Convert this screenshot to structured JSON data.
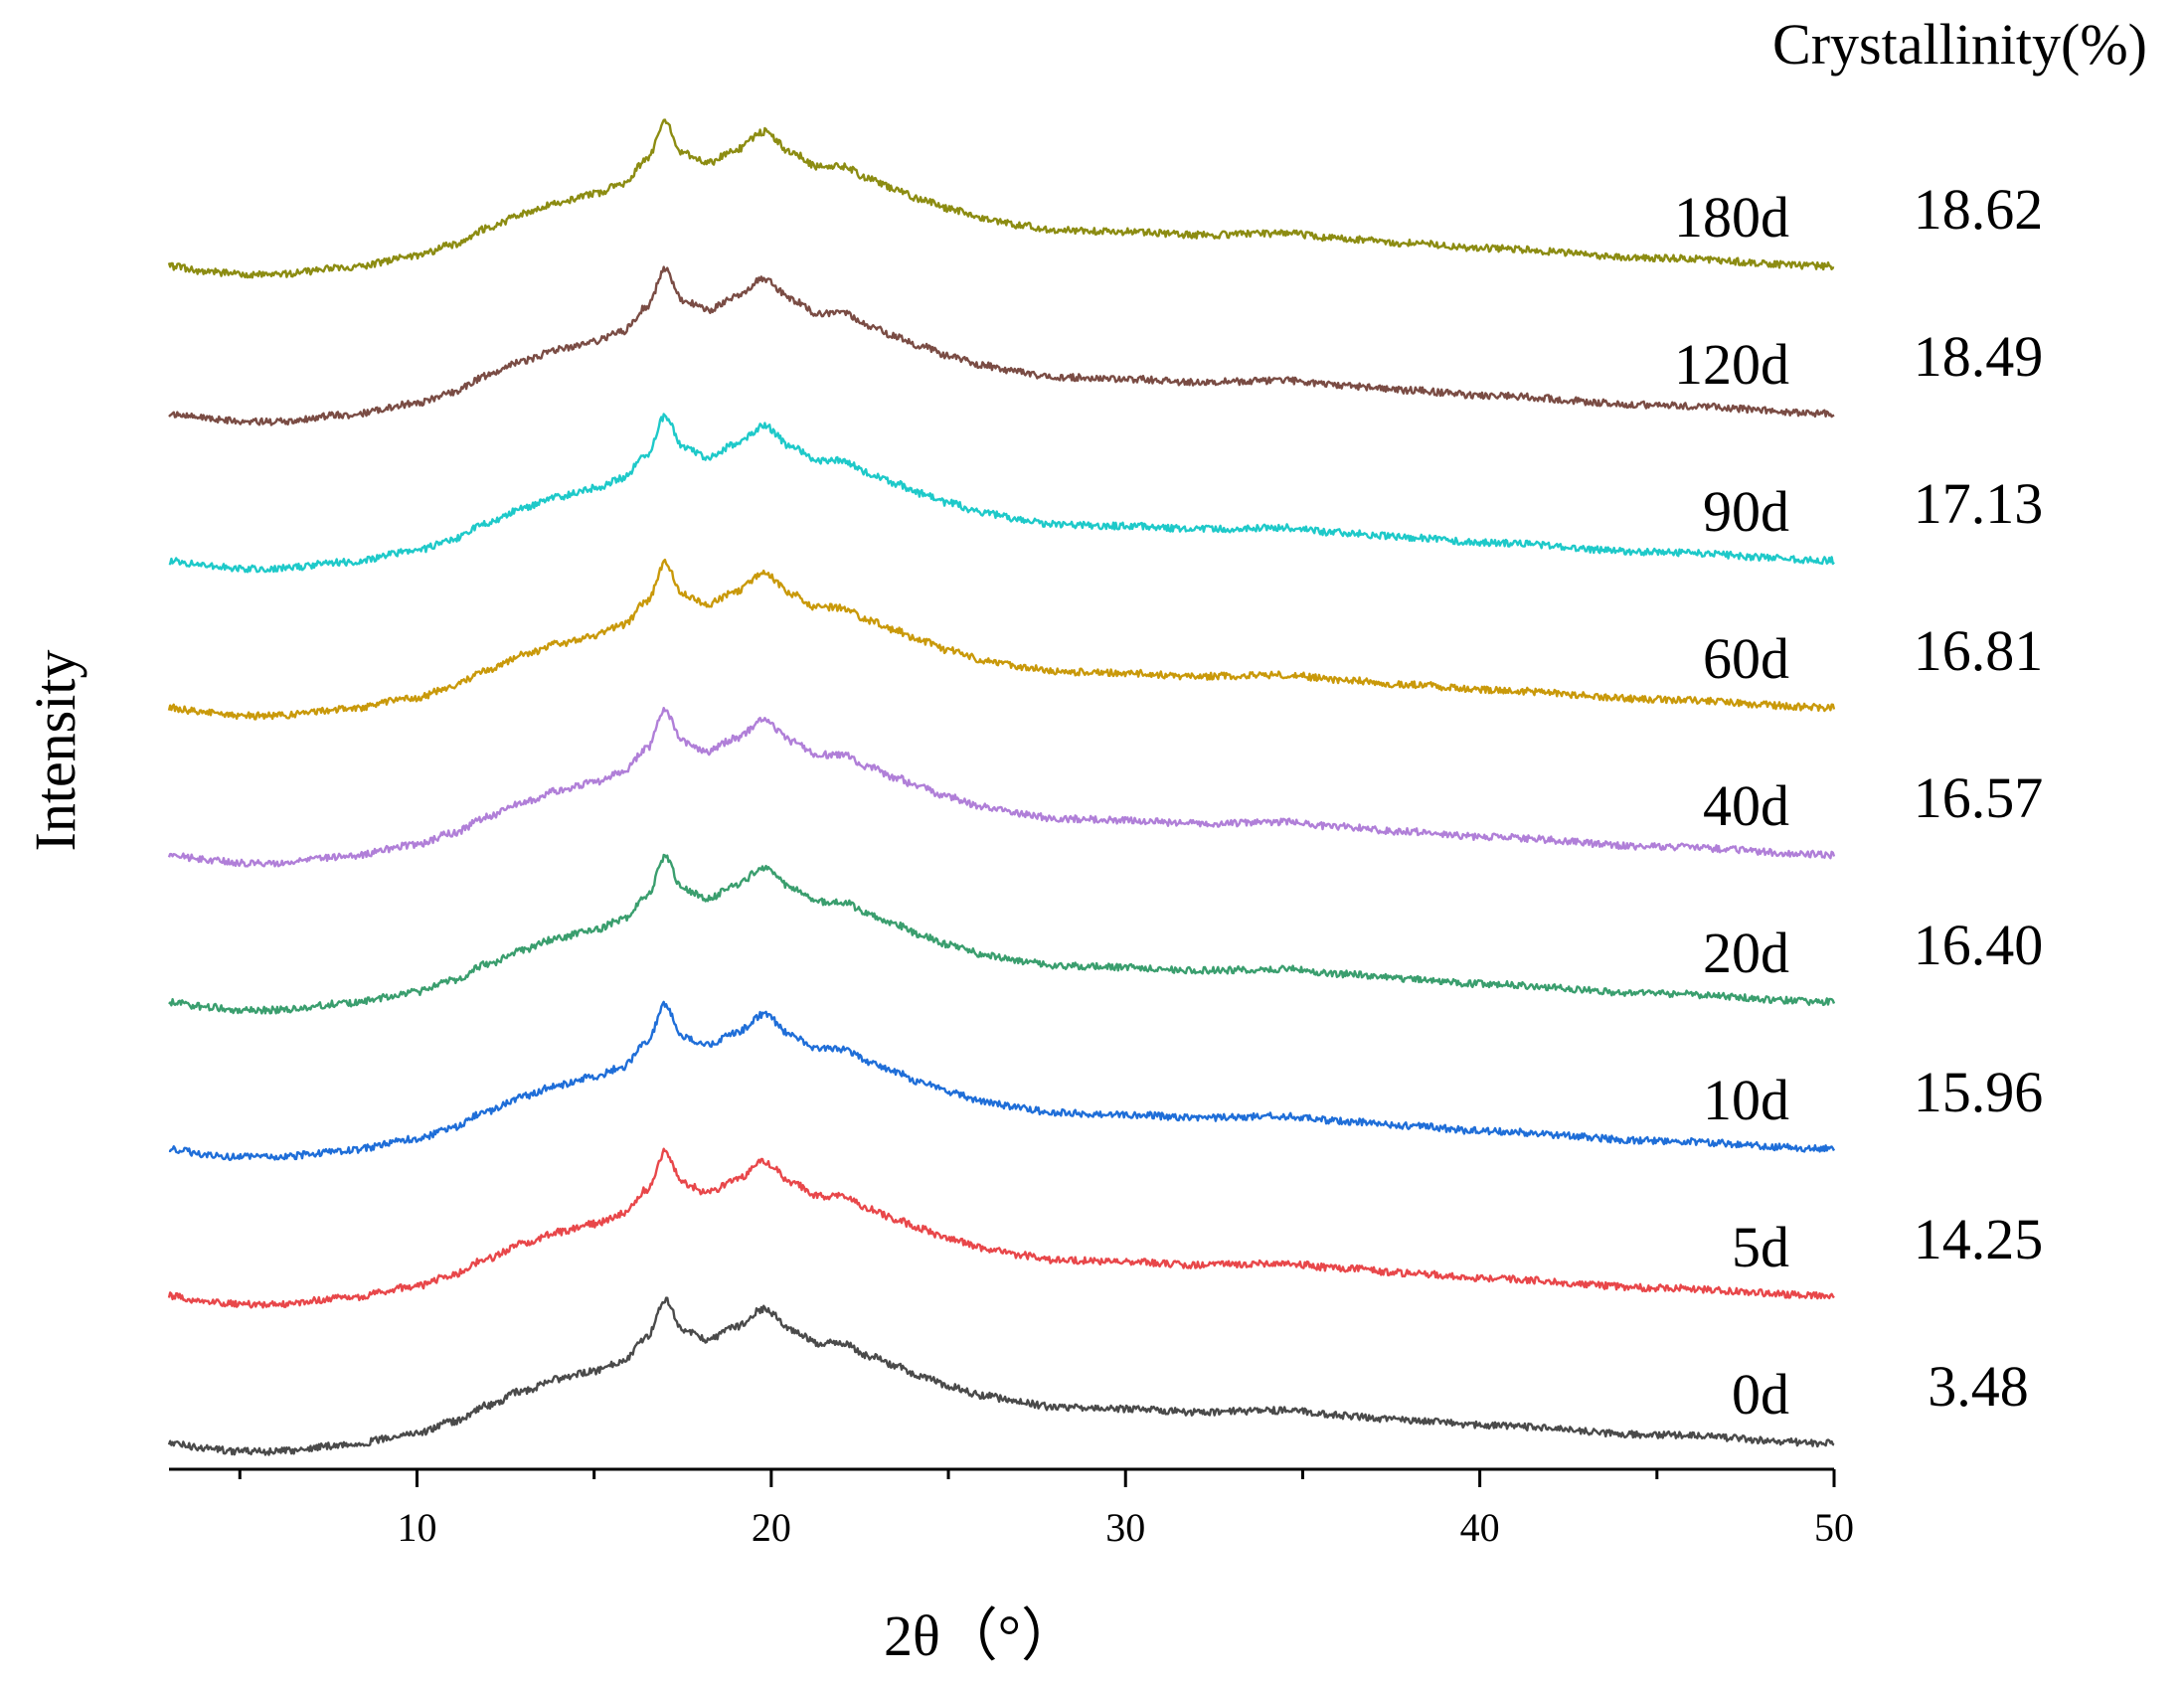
{
  "chart_data": {
    "type": "line",
    "title": "",
    "xlabel": "2θ（°）",
    "ylabel": "Intensity",
    "xlim": [
      3,
      50
    ],
    "x_ticks": [
      10,
      20,
      30,
      40,
      50
    ],
    "x_minor_ticks": [
      5,
      15,
      25,
      35,
      45
    ],
    "y_ticks": [],
    "grid": false,
    "legend": "none",
    "right_header": "Crystallinity(%)",
    "series": [
      {
        "name": "0d",
        "crystallinity": "3.48",
        "color": "#4a4a4a"
      },
      {
        "name": "5d",
        "crystallinity": "14.25",
        "color": "#e8474a"
      },
      {
        "name": "10d",
        "crystallinity": "15.96",
        "color": "#1f6ed8"
      },
      {
        "name": "20d",
        "crystallinity": "16.40",
        "color": "#3a9e6e"
      },
      {
        "name": "40d",
        "crystallinity": "16.57",
        "color": "#b07fd8"
      },
      {
        "name": "60d",
        "crystallinity": "16.81",
        "color": "#c9990a"
      },
      {
        "name": "90d",
        "crystallinity": "17.13",
        "color": "#1ec9c9"
      },
      {
        "name": "120d",
        "crystallinity": "18.49",
        "color": "#7a4c44"
      },
      {
        "name": "180d",
        "crystallinity": "18.62",
        "color": "#8c8c12"
      }
    ],
    "profile": {
      "x": [
        3,
        4,
        5,
        6,
        8,
        10,
        11,
        12,
        13,
        14,
        15,
        15.8,
        16.5,
        17.0,
        17.5,
        18.2,
        19.0,
        19.8,
        20.6,
        21.3,
        22.0,
        22.8,
        23.5,
        24.2,
        25.0,
        26.0,
        27.0,
        28.0,
        30.0,
        32.0,
        34.5,
        36.0,
        38.0,
        40.0,
        45.0,
        50.0
      ],
      "rel_intensity": [
        0.05,
        0.02,
        0.0,
        0.0,
        0.04,
        0.11,
        0.18,
        0.28,
        0.37,
        0.44,
        0.49,
        0.55,
        0.7,
        0.93,
        0.74,
        0.68,
        0.76,
        0.87,
        0.74,
        0.66,
        0.66,
        0.58,
        0.52,
        0.46,
        0.4,
        0.34,
        0.3,
        0.27,
        0.26,
        0.24,
        0.25,
        0.22,
        0.19,
        0.16,
        0.1,
        0.05
      ]
    }
  }
}
